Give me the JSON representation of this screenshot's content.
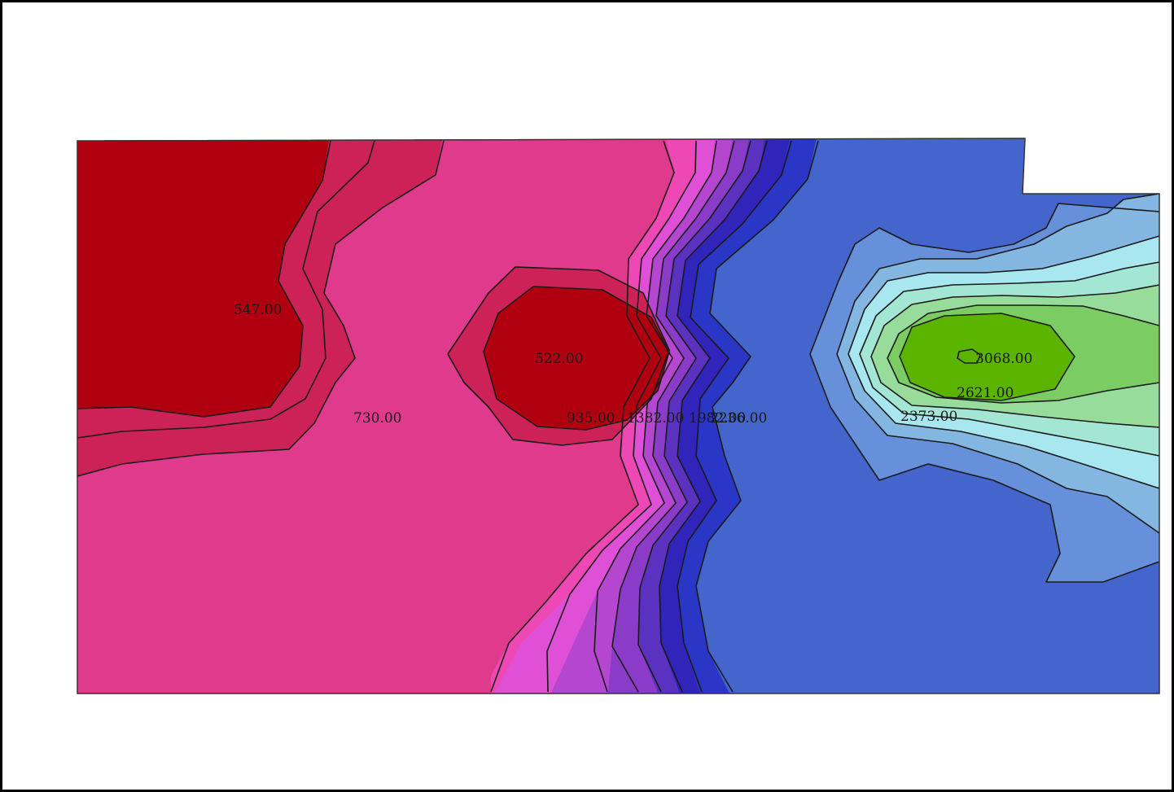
{
  "map": {
    "contour_labels": [
      "547.00",
      "522.00",
      "730.00",
      "935.00",
      "1382.00",
      "1982.00",
      "2236.00",
      "2621.00",
      "2373.00",
      "3068.00"
    ]
  },
  "colors": {
    "dark_red": "#b00010",
    "crimson": "#cc2257",
    "pink": "#e03a8c",
    "hot_pink": "#ee48b4",
    "magenta": "#e050d6",
    "violet": "#b446cf",
    "purple": "#8a3cc8",
    "indigo": "#5a32bf",
    "deep_blue": "#3024ba",
    "royal_blue": "#2a36c6",
    "blue": "#4466cc",
    "medium_blue": "#6690da",
    "sky_blue": "#84b6e2",
    "light_cyan": "#a8e6f0",
    "aqua_mint": "#a4e6d4",
    "mint_green": "#98dc9c",
    "light_green": "#7ccc64",
    "green": "#5ab400"
  }
}
